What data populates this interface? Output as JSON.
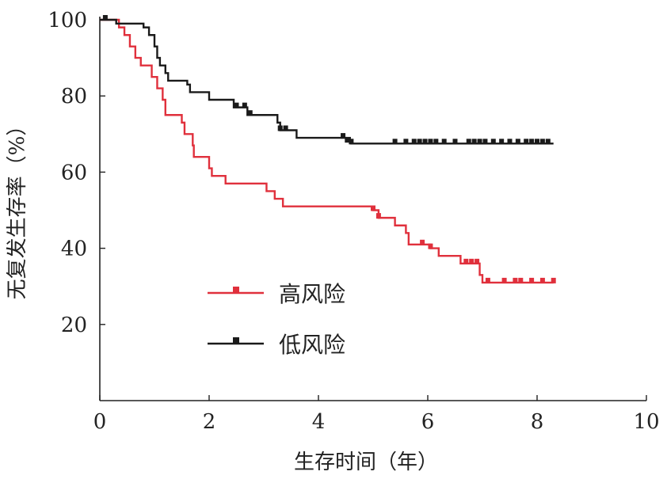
{
  "chart_data": {
    "type": "line",
    "subtype": "kaplan-meier",
    "title": "",
    "xlabel": "生存时间（年）",
    "ylabel": "无复发生存率（%）",
    "xlim": [
      0,
      10
    ],
    "ylim": [
      0,
      100
    ],
    "xticks": [
      0,
      2,
      4,
      6,
      8,
      10
    ],
    "yticks": [
      20,
      40,
      60,
      80,
      100
    ],
    "grid": false,
    "legend": {
      "placement": "center-left",
      "entries": [
        "高风险",
        "低风险"
      ]
    },
    "series": [
      {
        "name": "高风险",
        "color": "#e0303c",
        "steps": [
          [
            0,
            100
          ],
          [
            0.35,
            98
          ],
          [
            0.45,
            96
          ],
          [
            0.55,
            93
          ],
          [
            0.65,
            90
          ],
          [
            0.75,
            88
          ],
          [
            0.95,
            85
          ],
          [
            1.05,
            82
          ],
          [
            1.15,
            79
          ],
          [
            1.2,
            75
          ],
          [
            1.5,
            73
          ],
          [
            1.55,
            70
          ],
          [
            1.7,
            67
          ],
          [
            1.72,
            64
          ],
          [
            2.0,
            61
          ],
          [
            2.05,
            59
          ],
          [
            2.3,
            57
          ],
          [
            3.05,
            55
          ],
          [
            3.2,
            53
          ],
          [
            3.35,
            51
          ],
          [
            5.0,
            50
          ],
          [
            5.1,
            48
          ],
          [
            5.4,
            46
          ],
          [
            5.6,
            44
          ],
          [
            5.65,
            41
          ],
          [
            6.05,
            40
          ],
          [
            6.2,
            38
          ],
          [
            6.6,
            36
          ],
          [
            6.95,
            33
          ],
          [
            7.0,
            31
          ],
          [
            8.3,
            31
          ]
        ],
        "censor_x": [
          5.0,
          5.1,
          5.9,
          6.05,
          6.7,
          6.8,
          6.9,
          7.1,
          7.4,
          7.6,
          7.7,
          7.9,
          8.1,
          8.3
        ]
      },
      {
        "name": "低风险",
        "color": "#1a1a1a",
        "steps": [
          [
            0,
            100
          ],
          [
            0.3,
            99
          ],
          [
            0.8,
            98
          ],
          [
            0.9,
            96
          ],
          [
            1.0,
            93
          ],
          [
            1.05,
            90
          ],
          [
            1.1,
            88
          ],
          [
            1.2,
            86
          ],
          [
            1.25,
            84
          ],
          [
            1.6,
            83
          ],
          [
            1.65,
            81
          ],
          [
            1.9,
            81
          ],
          [
            2.0,
            79
          ],
          [
            2.4,
            79
          ],
          [
            2.45,
            77
          ],
          [
            2.7,
            75
          ],
          [
            3.25,
            73
          ],
          [
            3.3,
            71
          ],
          [
            3.6,
            69
          ],
          [
            4.5,
            68
          ],
          [
            4.6,
            67.5
          ],
          [
            8.3,
            67.5
          ]
        ],
        "censor_x": [
          0.1,
          2.5,
          2.65,
          2.75,
          3.3,
          3.4,
          4.45,
          4.55,
          4.6,
          5.4,
          5.6,
          5.75,
          5.85,
          5.95,
          6.05,
          6.15,
          6.3,
          6.5,
          6.75,
          6.85,
          6.95,
          7.05,
          7.2,
          7.35,
          7.5,
          7.65,
          7.8,
          7.9,
          8.0,
          8.1,
          8.2
        ]
      }
    ]
  }
}
